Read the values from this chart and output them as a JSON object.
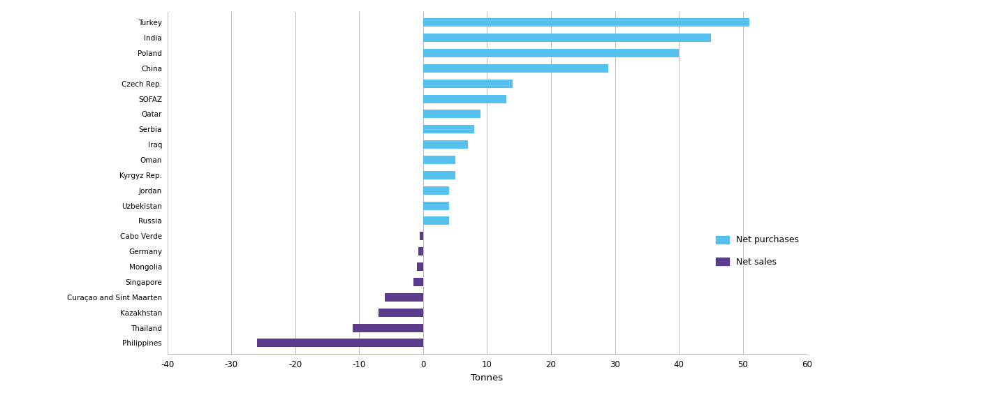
{
  "categories": [
    "Turkey",
    "India",
    "Poland",
    "China",
    "Czech Rep.",
    "SOFAZ",
    "Qatar",
    "Serbia",
    "Iraq",
    "Oman",
    "Kyrgyz Rep.",
    "Jordan",
    "Uzbekistan",
    "Russia",
    "Cabo Verde",
    "Germany",
    "Mongolia",
    "Singapore",
    "Curaçao and Sint Maarten",
    "Kazakhstan",
    "Thailand",
    "Philippines"
  ],
  "values": [
    51,
    45,
    40,
    29,
    14,
    13,
    9,
    8,
    7,
    5,
    5,
    4,
    4,
    4,
    -0.5,
    -0.7,
    -1,
    -1.5,
    -6,
    -7,
    -11,
    -26
  ],
  "colors": [
    "#56C0EE",
    "#56C0EE",
    "#56C0EE",
    "#56C0EE",
    "#56C0EE",
    "#56C0EE",
    "#56C0EE",
    "#56C0EE",
    "#56C0EE",
    "#56C0EE",
    "#56C0EE",
    "#56C0EE",
    "#56C0EE",
    "#56C0EE",
    "#5B3B8C",
    "#5B3B8C",
    "#5B3B8C",
    "#5B3B8C",
    "#5B3B8C",
    "#5B3B8C",
    "#5B3B8C",
    "#5B3B8C"
  ],
  "xlabel": "Tonnes",
  "xlim": [
    -40,
    60
  ],
  "xticks": [
    -40,
    -30,
    -20,
    -10,
    0,
    10,
    20,
    30,
    40,
    50,
    60
  ],
  "legend_labels": [
    "Net purchases",
    "Net sales"
  ],
  "legend_colors": [
    "#56C0EE",
    "#5B3B8C"
  ],
  "background_color": "#FFFFFF",
  "grid_color": "#BBBBBB",
  "bar_height": 0.55
}
